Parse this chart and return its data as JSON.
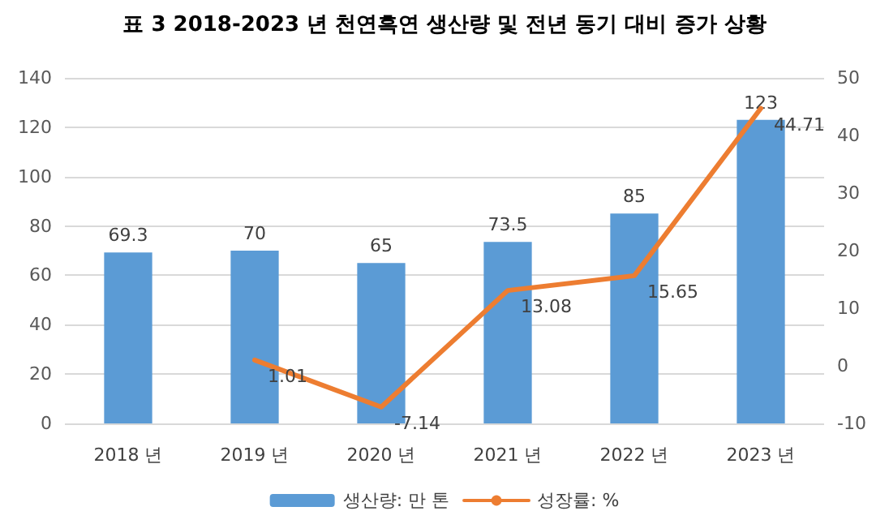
{
  "chart_data": {
    "type": "bar",
    "title": "표 3 2018-2023 년 천연흑연 생산량 및 전년 동기 대비 증가 상황",
    "categories": [
      "2018 년",
      "2019 년",
      "2020 년",
      "2021 년",
      "2022 년",
      "2023 년"
    ],
    "series": [
      {
        "name": "생산량: 만 톤",
        "color": "#5b9bd5",
        "values": [
          69.3,
          70,
          65,
          73.5,
          85,
          123
        ]
      },
      {
        "name": "성장률: %",
        "type": "line",
        "axis": "y2",
        "color": "#ed7d31",
        "values": [
          null,
          1.01,
          -7.14,
          13.08,
          15.65,
          44.71
        ]
      }
    ],
    "ylim": [
      0,
      140
    ],
    "yticks": [
      0,
      20,
      40,
      60,
      80,
      100,
      120,
      140
    ],
    "y2lim": [
      -10,
      50
    ],
    "y2ticks": [
      -10,
      0,
      10,
      20,
      30,
      40,
      50
    ],
    "grid": "y",
    "legend": "bottom",
    "data_labels": true,
    "marker": "none",
    "line_style": "solid"
  }
}
